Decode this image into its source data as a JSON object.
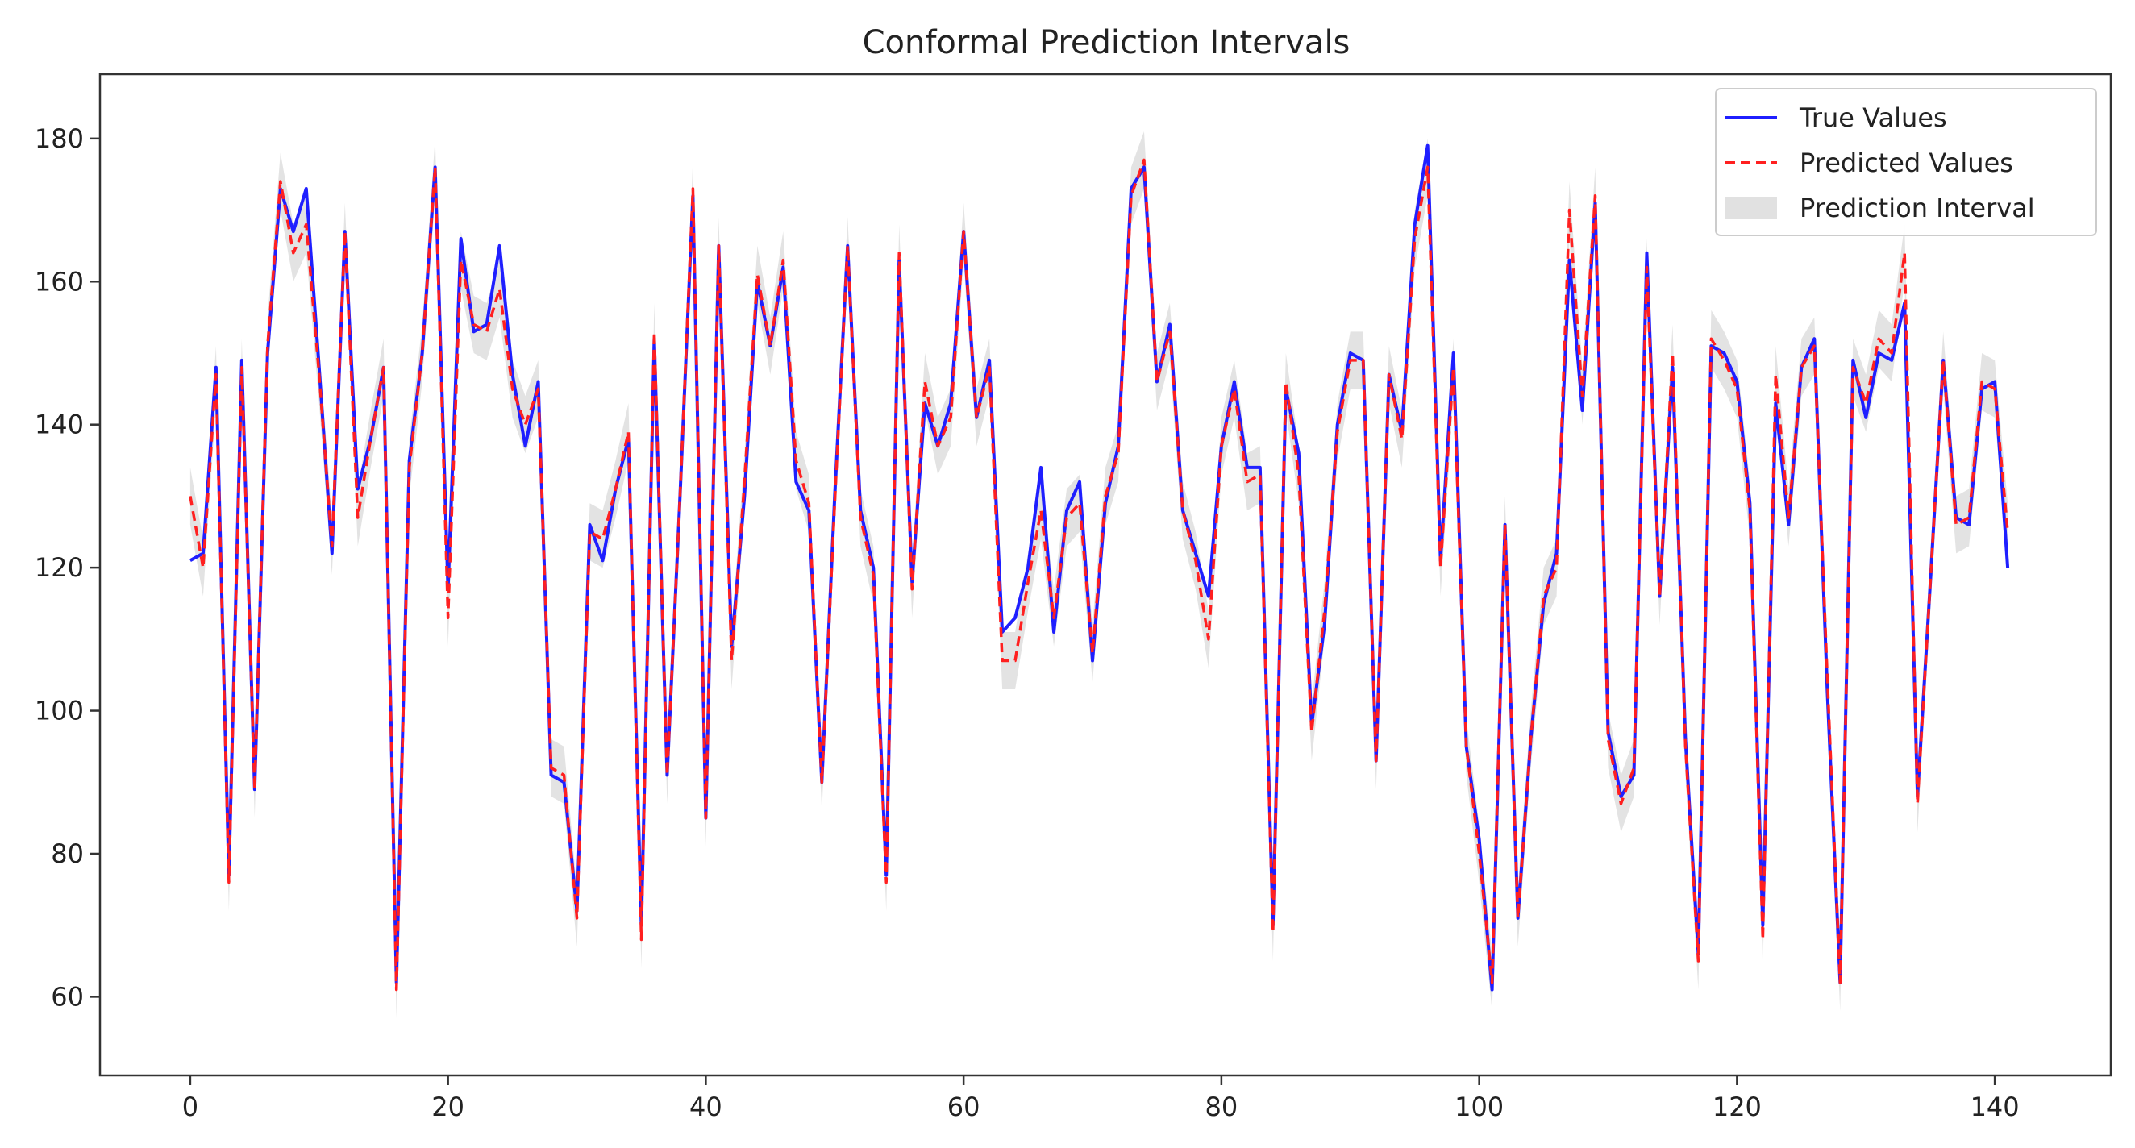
{
  "chart_data": {
    "type": "line",
    "title": "Conformal Prediction Intervals",
    "xlabel": "",
    "ylabel": "",
    "xlim": [
      -7,
      149
    ],
    "ylim": [
      49,
      189
    ],
    "xticks": [
      0,
      20,
      40,
      60,
      80,
      100,
      120,
      140
    ],
    "yticks": [
      60,
      80,
      100,
      120,
      140,
      160,
      180
    ],
    "grid": false,
    "legend": "top-right",
    "interval_halfwidth": 4,
    "x": [
      0,
      1,
      2,
      3,
      4,
      5,
      6,
      7,
      8,
      9,
      10,
      11,
      12,
      13,
      14,
      15,
      16,
      17,
      18,
      19,
      20,
      21,
      22,
      23,
      24,
      25,
      26,
      27,
      28,
      29,
      30,
      31,
      32,
      33,
      34,
      35,
      36,
      37,
      38,
      39,
      40,
      41,
      42,
      43,
      44,
      45,
      46,
      47,
      48,
      49,
      50,
      51,
      52,
      53,
      54,
      55,
      56,
      57,
      58,
      59,
      60,
      61,
      62,
      63,
      64,
      65,
      66,
      67,
      68,
      69,
      70,
      71,
      72,
      73,
      74,
      75,
      76,
      77,
      78,
      79,
      80,
      81,
      82,
      83,
      84,
      85,
      86,
      87,
      88,
      89,
      90,
      91,
      92,
      93,
      94,
      95,
      96,
      97,
      98,
      99,
      100,
      101,
      102,
      103,
      104,
      105,
      106,
      107,
      108,
      109,
      110,
      111,
      112,
      113,
      114,
      115,
      116,
      117,
      118,
      119,
      120,
      121,
      122,
      123,
      124,
      125,
      126,
      127,
      128,
      129,
      130,
      131,
      132,
      133,
      134,
      135,
      136,
      137,
      138,
      139,
      140,
      141
    ],
    "series": [
      {
        "name": "True Values",
        "color": "#1f1fff",
        "style": "solid",
        "values": [
          121,
          122,
          148,
          77,
          149,
          89,
          150,
          173,
          167,
          173,
          148,
          122,
          167,
          131,
          138,
          148,
          62,
          135,
          150,
          176,
          117,
          166,
          153,
          154,
          165,
          147,
          137,
          146,
          91,
          90,
          72,
          126,
          121,
          131,
          138,
          70,
          152,
          91,
          130,
          172,
          85,
          165,
          109,
          130,
          160,
          151,
          162,
          132,
          128,
          90,
          130,
          165,
          128,
          120,
          77,
          163,
          118,
          143,
          137,
          143,
          167,
          141,
          149,
          111,
          113,
          120,
          134,
          111,
          128,
          132,
          107,
          129,
          137,
          173,
          176,
          146,
          154,
          128,
          122,
          116,
          137,
          146,
          134,
          134,
          70,
          145,
          136,
          98,
          112,
          140,
          150,
          149,
          93,
          147,
          139,
          168,
          179,
          121,
          150,
          95,
          82,
          61,
          126,
          71,
          96,
          115,
          122,
          163,
          142,
          171,
          97,
          88,
          91,
          164,
          116,
          148,
          96,
          66,
          151,
          150,
          146,
          129,
          70,
          143,
          126,
          148,
          152,
          103,
          62,
          149,
          141,
          150,
          149,
          157,
          88,
          118,
          149,
          127,
          126,
          145,
          146,
          120
        ]
      },
      {
        "name": "Predicted Values",
        "color": "#ff2020",
        "style": "dashed",
        "values": [
          130,
          120,
          147,
          76,
          148,
          89,
          151,
          174,
          164,
          168,
          147,
          123,
          167,
          127,
          138,
          148,
          61,
          134,
          150,
          176,
          113,
          163,
          154,
          153,
          159,
          145,
          140,
          145,
          92,
          91,
          71,
          125,
          124,
          131,
          139,
          68,
          153,
          91,
          130,
          173,
          85,
          165,
          107,
          132,
          161,
          151,
          163,
          135,
          129,
          90,
          129,
          165,
          127,
          119,
          76,
          164,
          117,
          146,
          137,
          141,
          167,
          141,
          148,
          107,
          107,
          118,
          128,
          113,
          127,
          129,
          108,
          130,
          136,
          172,
          177,
          146,
          153,
          128,
          121,
          110,
          137,
          145,
          132,
          133,
          69,
          146,
          133,
          97,
          114,
          139,
          149,
          149,
          93,
          147,
          138,
          166,
          176,
          120,
          148,
          95,
          80,
          62,
          126,
          71,
          96,
          116,
          120,
          170,
          144,
          172,
          96,
          87,
          92,
          162,
          116,
          150,
          95,
          65,
          152,
          149,
          145,
          128,
          68,
          147,
          127,
          148,
          151,
          105,
          62,
          148,
          143,
          152,
          150,
          164,
          87,
          118,
          149,
          126,
          127,
          146,
          145,
          125
        ]
      }
    ],
    "legend_items": [
      {
        "label": "True Values",
        "color": "#1f1fff",
        "kind": "line"
      },
      {
        "label": "Predicted Values",
        "color": "#ff2020",
        "kind": "dashed"
      },
      {
        "label": "Prediction Interval",
        "color": "#d9d9d9",
        "kind": "patch"
      }
    ]
  }
}
